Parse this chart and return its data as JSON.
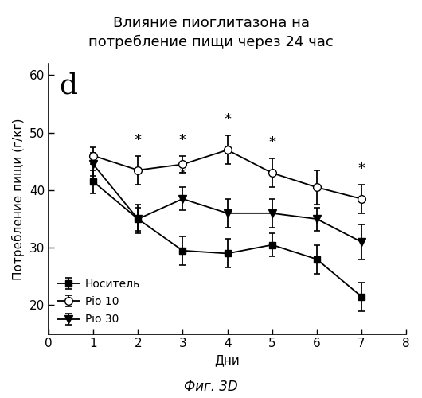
{
  "title": "Влияние пиоглитазона на\nпотребление пищи через 24 час",
  "xlabel": "Дни",
  "ylabel": "Потребление пищи (г/кг)",
  "caption": "Фиг. 3D",
  "panel_label": "d",
  "days": [
    1,
    2,
    3,
    4,
    5,
    6,
    7
  ],
  "vehicle_y": [
    41.5,
    35.0,
    29.5,
    29.0,
    30.5,
    28.0,
    21.5
  ],
  "vehicle_err": [
    2.0,
    2.0,
    2.5,
    2.5,
    2.0,
    2.5,
    2.5
  ],
  "pio10_y": [
    46.0,
    43.5,
    44.5,
    47.0,
    43.0,
    40.5,
    38.5
  ],
  "pio10_err": [
    1.5,
    2.5,
    1.5,
    2.5,
    2.5,
    3.0,
    2.5
  ],
  "pio30_y": [
    44.5,
    35.0,
    38.5,
    36.0,
    36.0,
    35.0,
    31.0
  ],
  "pio30_err": [
    2.0,
    2.5,
    2.0,
    2.5,
    2.5,
    2.0,
    3.0
  ],
  "star_days_pio10": [
    2,
    3,
    4,
    5,
    7
  ],
  "star_y_pio10": [
    47.5,
    47.5,
    51.0,
    47.0,
    42.5
  ],
  "star_days_pio30": [
    3
  ],
  "star_y_pio30": [
    41.5
  ],
  "xlim": [
    0,
    8
  ],
  "ylim": [
    15,
    62
  ],
  "yticks": [
    20,
    30,
    40,
    50,
    60
  ],
  "xticks": [
    0,
    1,
    2,
    3,
    4,
    5,
    6,
    7,
    8
  ],
  "bg_color": "#ffffff",
  "legend_labels": [
    "Носитель",
    "Pio 10",
    "Pio 30"
  ],
  "title_fontsize": 13,
  "label_fontsize": 11,
  "tick_fontsize": 11,
  "legend_fontsize": 10
}
